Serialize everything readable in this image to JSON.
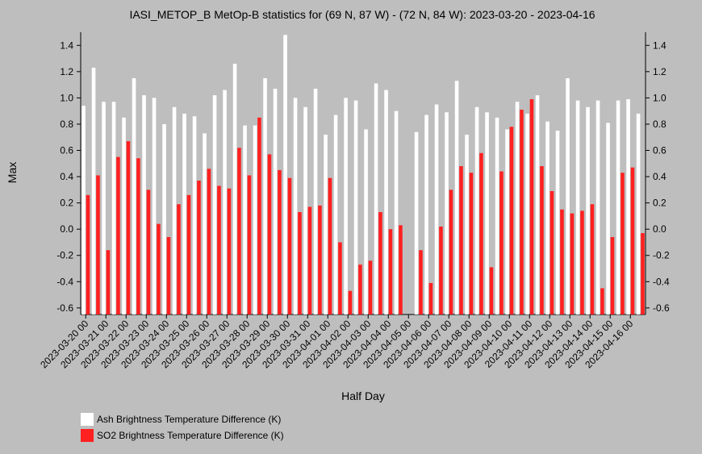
{
  "chart_data": {
    "type": "bar",
    "title": "IASI_METOP_B MetOp-B statistics for (69 N, 87 W) - (72 N, 84 W): 2023-03-20 - 2023-04-16",
    "xlabel": "Half Day",
    "ylabel": "Max",
    "ylim": [
      -0.65,
      1.5
    ],
    "yticks": [
      1.4,
      1.2,
      1.0,
      0.8,
      0.6,
      0.4,
      0.2,
      0.0,
      -0.2,
      -0.4,
      -0.6
    ],
    "ytick_labels": [
      "1.4",
      "1.2",
      "1.0",
      "0.8",
      "0.6",
      "0.4",
      "0.2",
      "0.0",
      "-0.2",
      "-0.4",
      "-0.6"
    ],
    "x_tick_labels": [
      "2023-03-20 00",
      "2023-03-21 00",
      "2023-03-22 00",
      "2023-03-23 00",
      "2023-03-24 00",
      "2023-03-25 00",
      "2023-03-26 00",
      "2023-03-27 00",
      "2023-03-28 00",
      "2023-03-29 00",
      "2023-03-30 00",
      "2023-03-31 00",
      "2023-04-01 00",
      "2023-04-02 00",
      "2023-04-03 00",
      "2023-04-04 00",
      "2023-04-05 00",
      "2023-04-06 00",
      "2023-04-07 00",
      "2023-04-08 00",
      "2023-04-09 00",
      "2023-04-10 00",
      "2023-04-11 00",
      "2023-04-12 00",
      "2023-04-13 00",
      "2023-04-14 00",
      "2023-04-15 00",
      "2023-04-16 00"
    ],
    "grid": false,
    "legend_position": "bottom-left",
    "series": [
      {
        "name": "Ash Brightness Temperature Difference (K)",
        "color": "#ffffff",
        "values": [
          0.94,
          1.23,
          0.97,
          0.97,
          0.85,
          1.15,
          1.02,
          1.0,
          0.8,
          0.93,
          0.88,
          0.86,
          0.73,
          1.02,
          1.06,
          1.26,
          0.79,
          0.79,
          1.15,
          1.07,
          1.48,
          1.0,
          0.93,
          1.07,
          0.72,
          0.87,
          1.0,
          0.98,
          0.76,
          1.11,
          1.06,
          0.9,
          null,
          0.74,
          0.87,
          0.95,
          0.89,
          1.13,
          0.72,
          0.93,
          0.89,
          0.85,
          0.76,
          0.97,
          0.88,
          1.02,
          0.82,
          0.75,
          1.15,
          0.98,
          0.93,
          0.98,
          0.81,
          0.98,
          0.99,
          0.88
        ]
      },
      {
        "name": "SO2 Brightness Temperature Difference (K)",
        "color": "#ff2020",
        "values": [
          0.26,
          0.41,
          -0.16,
          0.55,
          0.67,
          0.54,
          0.3,
          0.04,
          -0.06,
          0.19,
          0.26,
          0.37,
          0.46,
          0.33,
          0.31,
          0.62,
          0.41,
          0.85,
          0.57,
          0.45,
          0.39,
          0.13,
          0.17,
          0.18,
          0.39,
          -0.1,
          -0.47,
          -0.27,
          -0.24,
          0.13,
          0.0,
          0.03,
          null,
          -0.16,
          -0.41,
          0.02,
          0.3,
          0.48,
          0.43,
          0.58,
          -0.29,
          0.44,
          0.78,
          0.91,
          0.99,
          0.48,
          0.29,
          0.15,
          0.12,
          0.14,
          0.19,
          -0.45,
          -0.06,
          0.43,
          0.47,
          -0.03
        ]
      }
    ]
  }
}
